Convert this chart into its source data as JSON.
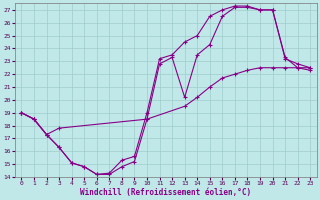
{
  "xlabel": "Windchill (Refroidissement éolien,°C)",
  "xlim": [
    -0.5,
    23.5
  ],
  "ylim": [
    14,
    27.5
  ],
  "xticks": [
    0,
    1,
    2,
    3,
    4,
    5,
    6,
    7,
    8,
    9,
    10,
    11,
    12,
    13,
    14,
    15,
    16,
    17,
    18,
    19,
    20,
    21,
    22,
    23
  ],
  "yticks": [
    14,
    15,
    16,
    17,
    18,
    19,
    20,
    21,
    22,
    23,
    24,
    25,
    26,
    27
  ],
  "bg_color": "#c0e8e8",
  "grid_color": "#a0cccc",
  "line_color": "#880088",
  "curve1_x": [
    0,
    1,
    2,
    3,
    4,
    5,
    6,
    7,
    8,
    9,
    10,
    11,
    12,
    13,
    14,
    15,
    16,
    17,
    18,
    19,
    20,
    21,
    22,
    23
  ],
  "curve1_y": [
    19.0,
    18.5,
    17.3,
    16.3,
    15.1,
    14.8,
    14.2,
    14.2,
    14.8,
    15.2,
    18.5,
    22.8,
    23.3,
    20.2,
    23.5,
    24.3,
    26.5,
    27.2,
    27.2,
    27.0,
    27.0,
    23.2,
    22.8,
    22.5
  ],
  "curve2_x": [
    0,
    1,
    2,
    3,
    4,
    5,
    6,
    7,
    8,
    9,
    10,
    11,
    12,
    13,
    14,
    15,
    16,
    17,
    18,
    19,
    20,
    21,
    22,
    23
  ],
  "curve2_y": [
    19.0,
    18.5,
    17.3,
    16.3,
    15.1,
    14.8,
    14.2,
    14.3,
    15.3,
    15.6,
    19.0,
    23.2,
    23.5,
    24.5,
    25.0,
    26.5,
    27.0,
    27.3,
    27.3,
    27.0,
    27.0,
    23.3,
    22.5,
    22.3
  ],
  "curve3_x": [
    0,
    1,
    2,
    3,
    10,
    13,
    14,
    15,
    16,
    17,
    18,
    19,
    20,
    21,
    22,
    23
  ],
  "curve3_y": [
    19.0,
    18.5,
    17.3,
    17.8,
    18.5,
    19.5,
    20.2,
    21.0,
    21.7,
    22.0,
    22.3,
    22.5,
    22.5,
    22.5,
    22.5,
    22.5
  ]
}
